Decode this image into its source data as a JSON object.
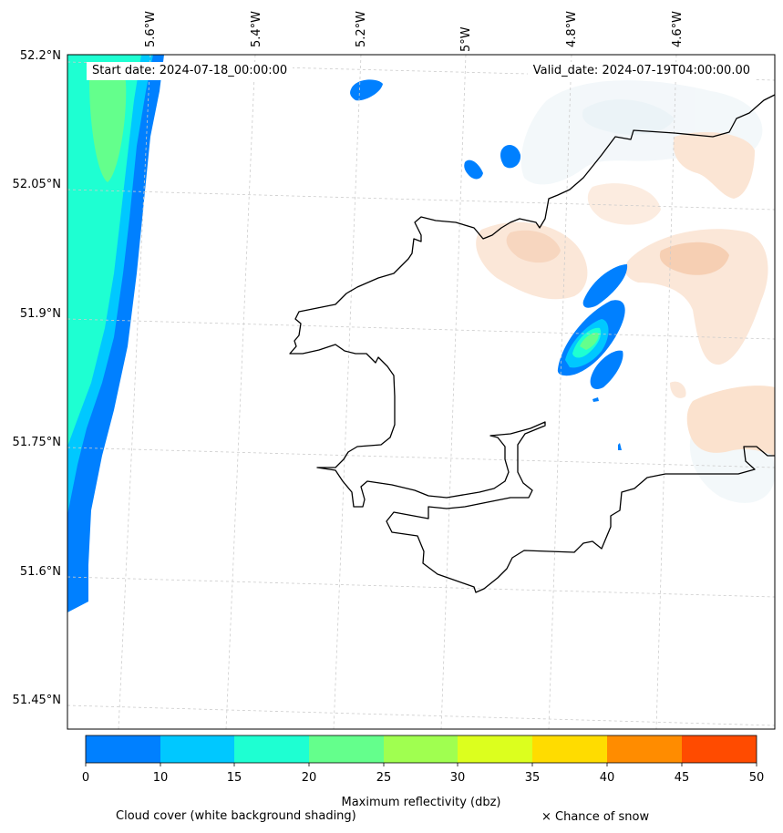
{
  "header": {
    "start_label": "Start date: 2024-07-18_00:00:00",
    "valid_label": "Valid_date: 2024-07-19T04:00:00.00"
  },
  "axes": {
    "lon_ticks": [
      "5.6°W",
      "5.4°W",
      "5.2°W",
      "5°W",
      "4.8°W",
      "4.6°W"
    ],
    "lat_ticks": [
      "52.2°N",
      "52.05°N",
      "51.9°N",
      "51.75°N",
      "51.6°N",
      "51.45°N"
    ]
  },
  "colorbar": {
    "ticks": [
      "0",
      "10",
      "15",
      "20",
      "25",
      "30",
      "35",
      "40",
      "45",
      "50"
    ],
    "colors": [
      "#0080ff",
      "#00c8ff",
      "#1effd2",
      "#64ff8c",
      "#a0ff50",
      "#dcff1e",
      "#ffdc00",
      "#ff8c00",
      "#ff4b00"
    ],
    "label": "Maximum reflectivity (dbz)"
  },
  "legend": {
    "cloud_cover": "Cloud cover (white background shading)",
    "snow": "× Chance of snow"
  },
  "colors": {
    "cloud_shade": "#e8f2f5",
    "cloud_shade_warm": "#f9dcc6",
    "coastline": "#000000",
    "gridline": "#cccccc"
  }
}
